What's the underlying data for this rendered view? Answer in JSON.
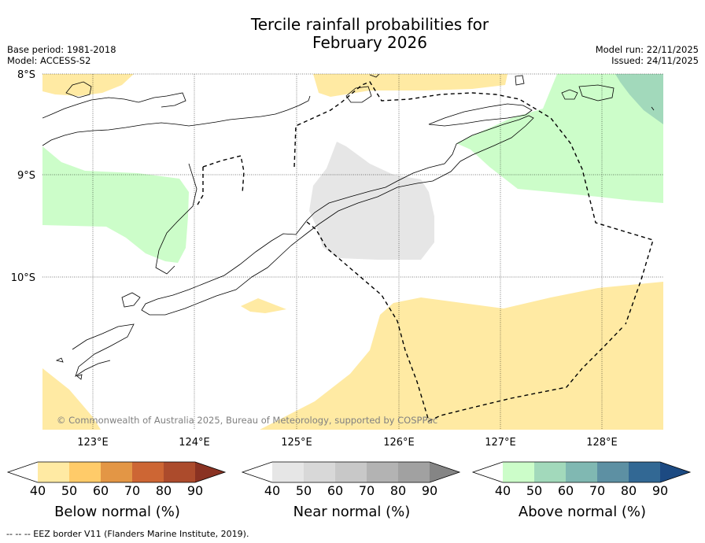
{
  "title": {
    "line1": "Tercile rainfall probabilities for",
    "line2": "February 2026"
  },
  "header_left": {
    "base_period": "Base period: 1981-2018",
    "model": "Model: ACCESS-S2"
  },
  "header_right": {
    "model_run": "Model run: 22/11/2025",
    "issued": "Issued: 24/11/2025"
  },
  "map": {
    "lat_labels": [
      "8°S",
      "9°S",
      "10°S"
    ],
    "lon_labels": [
      "123°E",
      "124°E",
      "125°E",
      "126°E",
      "127°E",
      "128°E"
    ],
    "copyright": "© Commonwealth of Australia 2025, Bureau of Meteorology, supported by COSPPac"
  },
  "colorbars": {
    "tick_labels": [
      "40",
      "50",
      "60",
      "70",
      "80",
      "90"
    ],
    "below": {
      "label": "Below normal (%)",
      "colors": [
        "#ffeaa3",
        "#ffcb69",
        "#e39645",
        "#cd6634",
        "#ac4b2c",
        "#8a3222"
      ]
    },
    "near": {
      "label": "Near normal (%)",
      "colors": [
        "#e6e6e6",
        "#d8d8d8",
        "#c8c8c8",
        "#b3b3b3",
        "#a1a1a1",
        "#858585"
      ]
    },
    "above": {
      "label": "Above normal (%)",
      "colors": [
        "#ccfdc9",
        "#a2d9bb",
        "#80b8b2",
        "#5d90a3",
        "#326894",
        "#1c4a82"
      ]
    }
  },
  "footer": "--  --  -- EEZ border V11 (Flanders Marine Institute, 2019)."
}
